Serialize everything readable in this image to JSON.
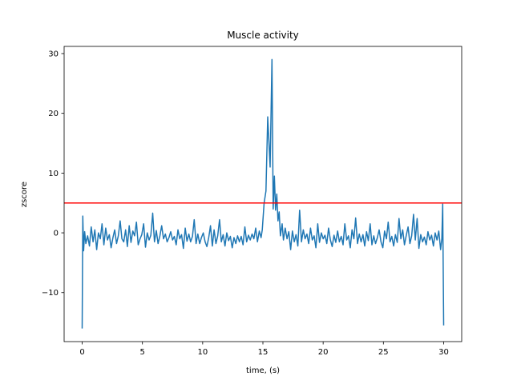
{
  "chart_data": {
    "type": "line",
    "title": "Muscle activity",
    "xlabel": "time, (s)",
    "ylabel": "zscore",
    "xlim": [
      -1.5,
      31.5
    ],
    "ylim": [
      -18.2,
      31.2
    ],
    "xticks": [
      0,
      5,
      10,
      15,
      20,
      25,
      30
    ],
    "yticks": [
      -10,
      0,
      10,
      20,
      30
    ],
    "ytick_labels": [
      "−10",
      "0",
      "10",
      "20",
      "30"
    ],
    "grid": false,
    "series": [
      {
        "color": "#1f77b4",
        "points": [
          [
            0,
            -16
          ],
          [
            0.05,
            2.8
          ],
          [
            0.12,
            -3
          ],
          [
            0.2,
            0.2
          ],
          [
            0.3,
            -1.8
          ],
          [
            0.45,
            -0.5
          ],
          [
            0.6,
            -2.2
          ],
          [
            0.75,
            1
          ],
          [
            0.9,
            -1.5
          ],
          [
            1.05,
            0.5
          ],
          [
            1.2,
            -2.8
          ],
          [
            1.35,
            0
          ],
          [
            1.5,
            -1
          ],
          [
            1.65,
            1.5
          ],
          [
            1.8,
            -2
          ],
          [
            1.95,
            0.8
          ],
          [
            2.1,
            -1.2
          ],
          [
            2.25,
            -0.3
          ],
          [
            2.4,
            -2.5
          ],
          [
            2.55,
            -0.8
          ],
          [
            2.7,
            0.5
          ],
          [
            2.85,
            -1.8
          ],
          [
            3.0,
            -0.5
          ],
          [
            3.15,
            2
          ],
          [
            3.3,
            -1
          ],
          [
            3.45,
            -1.5
          ],
          [
            3.6,
            0.5
          ],
          [
            3.75,
            -2.3
          ],
          [
            3.9,
            1.2
          ],
          [
            4.05,
            -1.6
          ],
          [
            4.2,
            0.3
          ],
          [
            4.35,
            -0.5
          ],
          [
            4.5,
            1.8
          ],
          [
            4.65,
            -2
          ],
          [
            4.8,
            -1
          ],
          [
            4.95,
            -0.3
          ],
          [
            5.1,
            1.5
          ],
          [
            5.25,
            -2.4
          ],
          [
            5.4,
            0
          ],
          [
            5.55,
            -1.2
          ],
          [
            5.7,
            -0.4
          ],
          [
            5.85,
            3.3
          ],
          [
            6.0,
            -1.5
          ],
          [
            6.15,
            0.4
          ],
          [
            6.3,
            -1.8
          ],
          [
            6.45,
            -0.5
          ],
          [
            6.6,
            1.2
          ],
          [
            6.75,
            -1
          ],
          [
            6.9,
            -0.2
          ],
          [
            7.05,
            -1.5
          ],
          [
            7.2,
            -0.8
          ],
          [
            7.35,
            0.2
          ],
          [
            7.5,
            -1.2
          ],
          [
            7.65,
            -0.6
          ],
          [
            7.8,
            -2
          ],
          [
            7.95,
            0.5
          ],
          [
            8.1,
            -1
          ],
          [
            8.25,
            -0.3
          ],
          [
            8.4,
            -2.6
          ],
          [
            8.55,
            0.8
          ],
          [
            8.7,
            -1.4
          ],
          [
            8.85,
            -0.2
          ],
          [
            9.0,
            -1.5
          ],
          [
            9.15,
            -0.6
          ],
          [
            9.3,
            2.2
          ],
          [
            9.45,
            -1.8
          ],
          [
            9.6,
            -0.2
          ],
          [
            9.75,
            -1.8
          ],
          [
            9.9,
            -0.8
          ],
          [
            10.05,
            0
          ],
          [
            10.2,
            -1.5
          ],
          [
            10.35,
            -2.3
          ],
          [
            10.5,
            -0.8
          ],
          [
            10.65,
            1.2
          ],
          [
            10.8,
            -2.2
          ],
          [
            10.95,
            0.5
          ],
          [
            11.1,
            -1.8
          ],
          [
            11.25,
            -0.5
          ],
          [
            11.4,
            2.2
          ],
          [
            11.55,
            -1.5
          ],
          [
            11.7,
            -0.3
          ],
          [
            11.85,
            -2.2
          ],
          [
            12.0,
            0
          ],
          [
            12.15,
            -1.3
          ],
          [
            12.3,
            -0.6
          ],
          [
            12.45,
            -2.5
          ],
          [
            12.6,
            -0.8
          ],
          [
            12.75,
            -1.8
          ],
          [
            12.9,
            -0.5
          ],
          [
            13.05,
            -1.5
          ],
          [
            13.2,
            -0.6
          ],
          [
            13.35,
            -2
          ],
          [
            13.5,
            1
          ],
          [
            13.65,
            -1.5
          ],
          [
            13.8,
            -0.4
          ],
          [
            13.95,
            -1.2
          ],
          [
            14.1,
            -0.2
          ],
          [
            14.25,
            -1
          ],
          [
            14.4,
            0.8
          ],
          [
            14.55,
            -1.5
          ],
          [
            14.7,
            0.3
          ],
          [
            14.85,
            -0.8
          ],
          [
            14.95,
            0.5
          ],
          [
            15.1,
            5
          ],
          [
            15.25,
            7
          ],
          [
            15.4,
            19.4
          ],
          [
            15.6,
            11
          ],
          [
            15.75,
            29
          ],
          [
            15.85,
            4
          ],
          [
            15.95,
            9.5
          ],
          [
            16.05,
            3.8
          ],
          [
            16.15,
            6.5
          ],
          [
            16.25,
            2
          ],
          [
            16.35,
            3.5
          ],
          [
            16.45,
            -0.5
          ],
          [
            16.6,
            1.5
          ],
          [
            16.7,
            -1.2
          ],
          [
            16.85,
            0.8
          ],
          [
            17.0,
            -1
          ],
          [
            17.15,
            0.2
          ],
          [
            17.3,
            -2.8
          ],
          [
            17.45,
            0.3
          ],
          [
            17.6,
            -1.5
          ],
          [
            17.75,
            -0.3
          ],
          [
            17.9,
            -2.2
          ],
          [
            18.05,
            3.8
          ],
          [
            18.2,
            -1.5
          ],
          [
            18.35,
            0.5
          ],
          [
            18.5,
            -1
          ],
          [
            18.65,
            -0.2
          ],
          [
            18.8,
            -1.8
          ],
          [
            18.95,
            0.8
          ],
          [
            19.1,
            -1.2
          ],
          [
            19.25,
            -0.5
          ],
          [
            19.4,
            -2.5
          ],
          [
            19.55,
            1.5
          ],
          [
            19.7,
            -1.6
          ],
          [
            19.85,
            0
          ],
          [
            20.0,
            -1
          ],
          [
            20.15,
            -0.4
          ],
          [
            20.3,
            -1.8
          ],
          [
            20.45,
            0.8
          ],
          [
            20.6,
            -1.2
          ],
          [
            20.75,
            -2.3
          ],
          [
            20.9,
            -0.4
          ],
          [
            21.05,
            -1.6
          ],
          [
            21.2,
            0.3
          ],
          [
            21.35,
            -1.5
          ],
          [
            21.5,
            -0.6
          ],
          [
            21.65,
            -2
          ],
          [
            21.8,
            1.5
          ],
          [
            21.95,
            -1.2
          ],
          [
            22.1,
            -0.5
          ],
          [
            22.25,
            -2.5
          ],
          [
            22.4,
            0.5
          ],
          [
            22.55,
            -1
          ],
          [
            22.7,
            2.5
          ],
          [
            22.85,
            -1.8
          ],
          [
            23.0,
            -0.2
          ],
          [
            23.15,
            -1.5
          ],
          [
            23.3,
            -0.3
          ],
          [
            23.45,
            -2.2
          ],
          [
            23.6,
            0.2
          ],
          [
            23.75,
            -1.3
          ],
          [
            23.9,
            1.5
          ],
          [
            24.05,
            -2
          ],
          [
            24.2,
            -0.5
          ],
          [
            24.35,
            -1.8
          ],
          [
            24.5,
            -0.8
          ],
          [
            24.65,
            0.5
          ],
          [
            24.8,
            -1.5
          ],
          [
            24.95,
            -2.5
          ],
          [
            25.1,
            0.3
          ],
          [
            25.25,
            -1
          ],
          [
            25.4,
            1.8
          ],
          [
            25.55,
            -1.5
          ],
          [
            25.7,
            -0.6
          ],
          [
            25.85,
            -2.2
          ],
          [
            26.0,
            -0.3
          ],
          [
            26.15,
            -1.6
          ],
          [
            26.3,
            2.4
          ],
          [
            26.45,
            -1
          ],
          [
            26.6,
            0.5
          ],
          [
            26.75,
            -2
          ],
          [
            26.9,
            -0.4
          ],
          [
            27.05,
            1
          ],
          [
            27.2,
            -1.8
          ],
          [
            27.35,
            -0.5
          ],
          [
            27.5,
            3.1
          ],
          [
            27.65,
            -1.2
          ],
          [
            27.8,
            2.4
          ],
          [
            27.95,
            -2.6
          ],
          [
            28.1,
            -0.3
          ],
          [
            28.25,
            -1.5
          ],
          [
            28.4,
            -0.7
          ],
          [
            28.55,
            -2
          ],
          [
            28.7,
            0.2
          ],
          [
            28.85,
            -1.2
          ],
          [
            29.0,
            -0.4
          ],
          [
            29.15,
            -2.2
          ],
          [
            29.3,
            0
          ],
          [
            29.45,
            -1.2
          ],
          [
            29.6,
            0.3
          ],
          [
            29.75,
            -2.8
          ],
          [
            29.85,
            -1
          ],
          [
            29.92,
            4.8
          ],
          [
            30.0,
            -15.5
          ]
        ]
      }
    ],
    "hlines": [
      {
        "y": 5,
        "color": "#ff0000"
      }
    ]
  }
}
